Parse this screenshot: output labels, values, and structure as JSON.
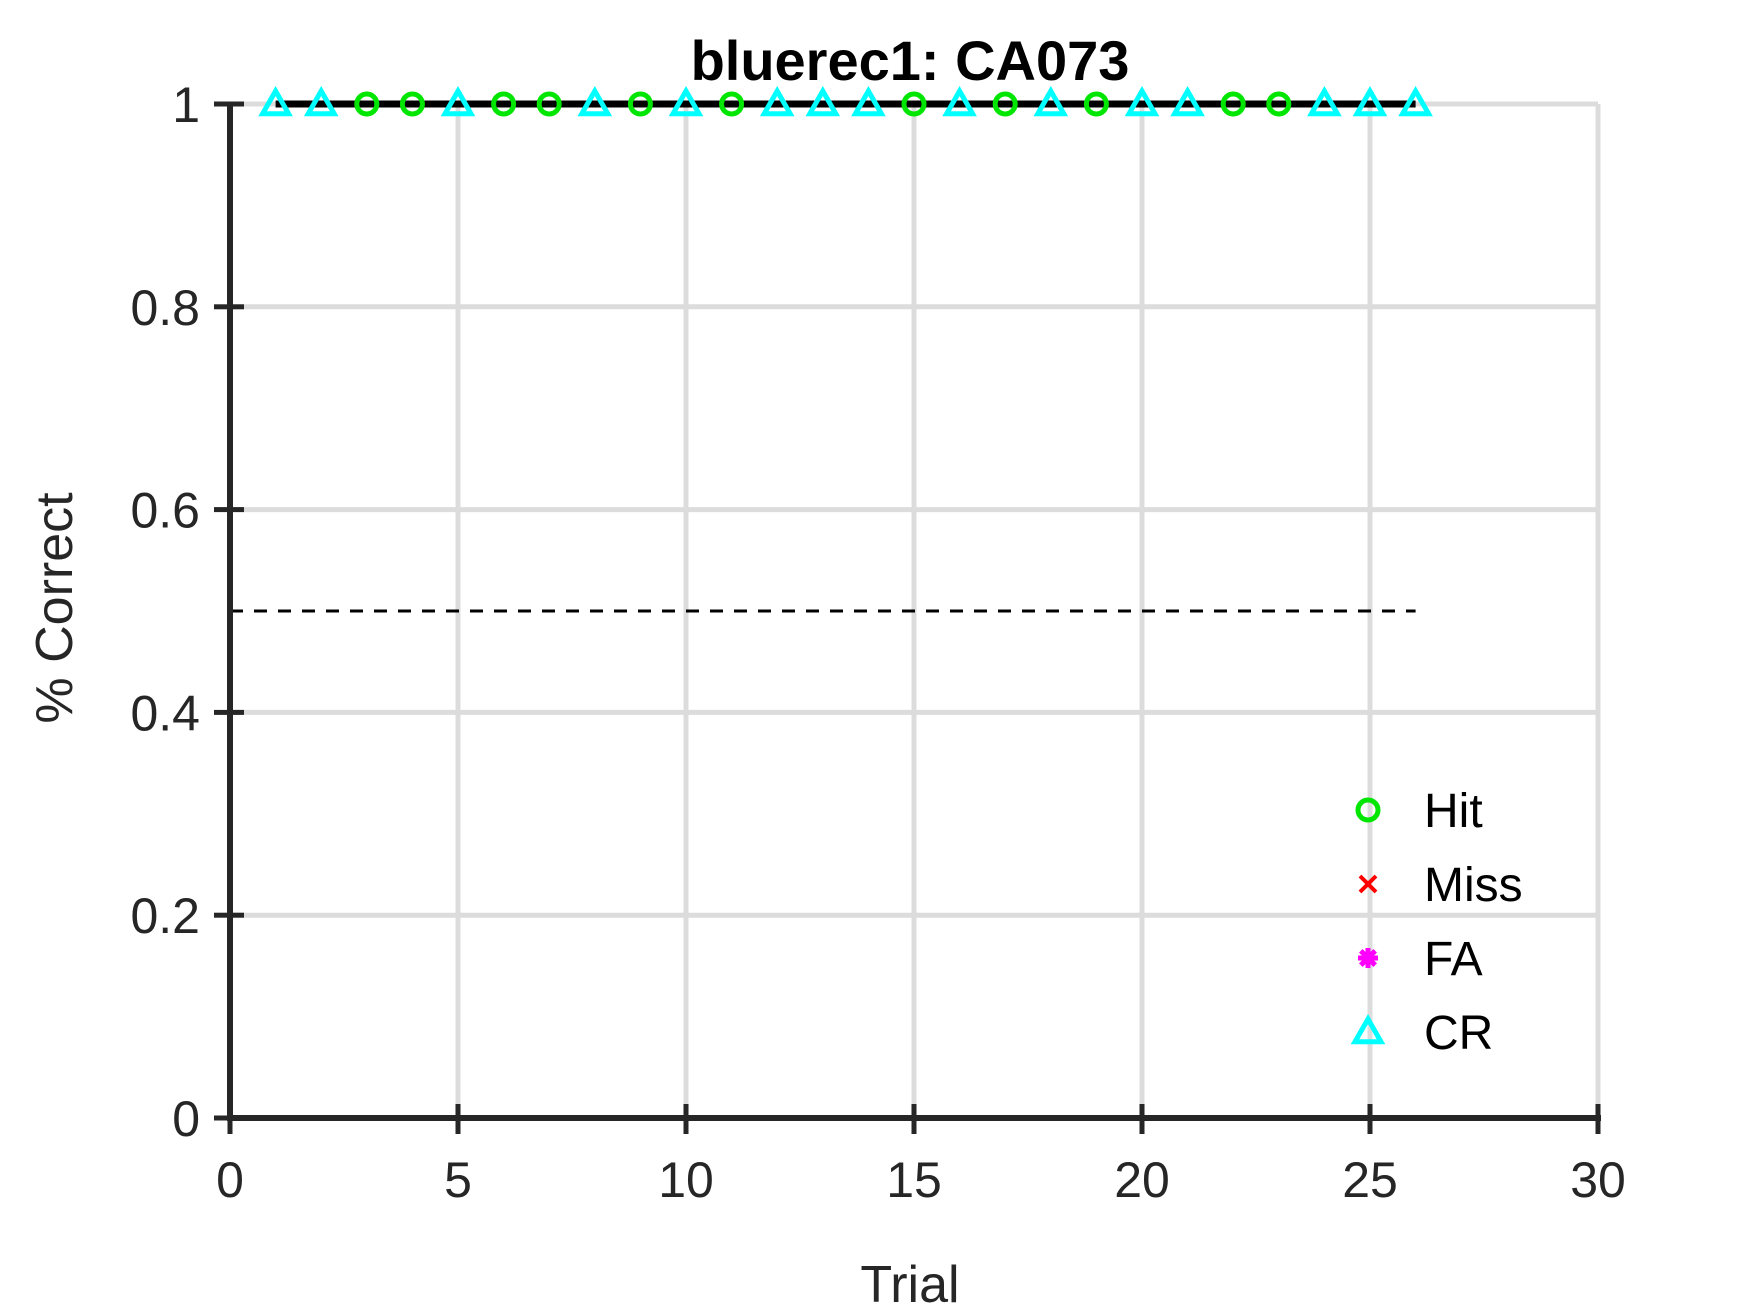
{
  "chart_data": {
    "type": "line",
    "title": "bluerec1: CA073",
    "xlabel": "Trial",
    "ylabel": "% Correct",
    "xlim": [
      0,
      30
    ],
    "ylim": [
      0,
      1
    ],
    "xticks": [
      0,
      5,
      10,
      15,
      20,
      25,
      30
    ],
    "yticks": [
      0,
      0.2,
      0.4,
      0.6,
      0.8,
      1
    ],
    "xtick_labels": [
      "0",
      "5",
      "10",
      "15",
      "20",
      "25",
      "30"
    ],
    "ytick_labels": [
      "0",
      "0.2",
      "0.4",
      "0.6",
      "0.8",
      "1"
    ],
    "grid": true,
    "legend_position": "bottom-right",
    "performance_line": {
      "x": [
        1,
        2,
        3,
        4,
        5,
        6,
        7,
        8,
        9,
        10,
        11,
        12,
        13,
        14,
        15,
        16,
        17,
        18,
        19,
        20,
        21,
        22,
        23,
        24,
        25,
        26
      ],
      "y": [
        1,
        1,
        1,
        1,
        1,
        1,
        1,
        1,
        1,
        1,
        1,
        1,
        1,
        1,
        1,
        1,
        1,
        1,
        1,
        1,
        1,
        1,
        1,
        1,
        1,
        1
      ],
      "color": "#000000"
    },
    "chance_line": {
      "x": [
        0,
        26
      ],
      "y": [
        0.5,
        0.5
      ],
      "color": "#000000"
    },
    "series": [
      {
        "name": "Hit",
        "marker": "circle",
        "color": "#00e600",
        "x": [
          3,
          4,
          6,
          7,
          9,
          11,
          15,
          17,
          19,
          22,
          23
        ],
        "y": [
          1,
          1,
          1,
          1,
          1,
          1,
          1,
          1,
          1,
          1,
          1
        ]
      },
      {
        "name": "Miss",
        "marker": "x",
        "color": "#ff0000",
        "x": [],
        "y": []
      },
      {
        "name": "FA",
        "marker": "asterisk",
        "color": "#ff00ff",
        "x": [],
        "y": []
      },
      {
        "name": "CR",
        "marker": "triangle",
        "color": "#00ffff",
        "x": [
          1,
          2,
          5,
          8,
          10,
          12,
          13,
          14,
          16,
          18,
          20,
          21,
          24,
          25,
          26
        ],
        "y": [
          1,
          1,
          1,
          1,
          1,
          1,
          1,
          1,
          1,
          1,
          1,
          1,
          1,
          1,
          1
        ]
      }
    ]
  }
}
